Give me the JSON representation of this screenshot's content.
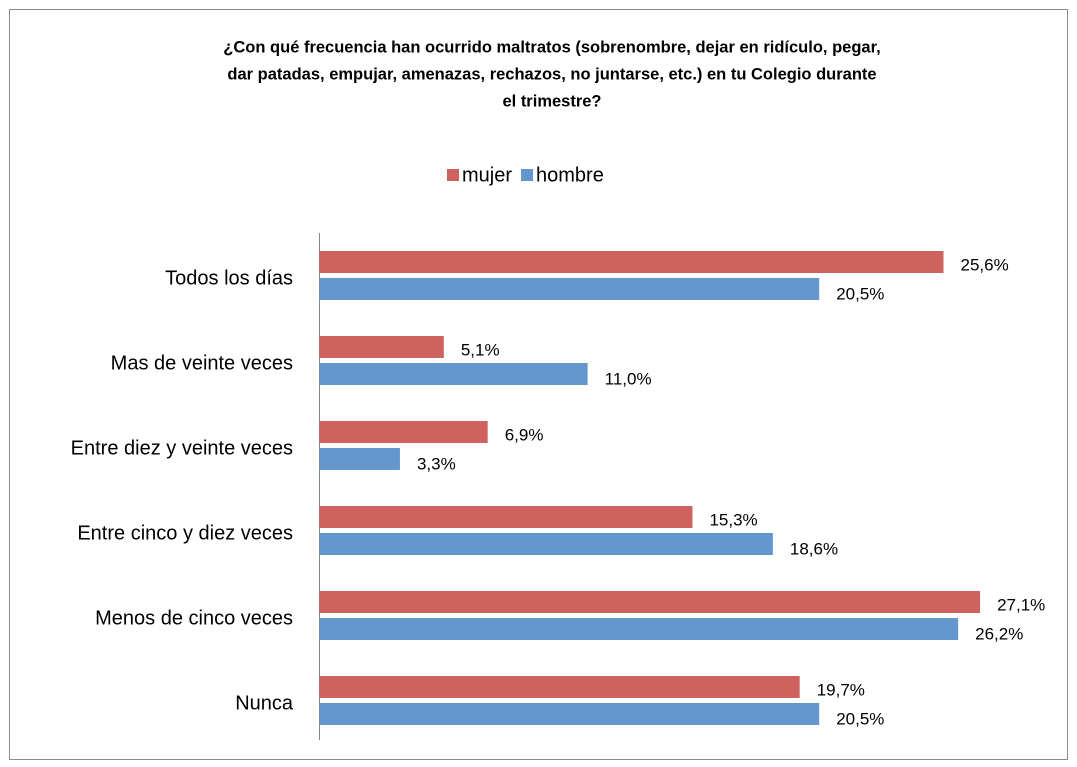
{
  "chart_data": {
    "type": "hbar",
    "title": [
      "¿Con qué frecuencia han ocurrido maltratos (sobrenombre, dejar en ridículo, pegar,",
      "dar patadas, empujar, amenazas, rechazos, no juntarse, etc.) en tu Colegio durante",
      "el trimestre?"
    ],
    "categories": [
      "Todos los días",
      "Mas de veinte veces",
      "Entre diez y veinte veces",
      "Entre cinco y diez veces",
      "Menos de cinco veces",
      "Nunca"
    ],
    "series": [
      {
        "name": "mujer",
        "color": "#cd625f",
        "values": [
          25.6,
          5.1,
          6.9,
          15.3,
          27.1,
          19.7
        ],
        "value_labels": [
          "25,6%",
          "5,1%",
          "6,9%",
          "15,3%",
          "27,1%",
          "19,7%"
        ]
      },
      {
        "name": "hombre",
        "color": "#6497cd",
        "values": [
          20.5,
          11.0,
          3.3,
          18.6,
          26.2,
          20.5
        ],
        "value_labels": [
          "20,5%",
          "11,0%",
          "3,3%",
          "18,6%",
          "26,2%",
          "20,5%"
        ]
      }
    ],
    "legend": "top"
  }
}
